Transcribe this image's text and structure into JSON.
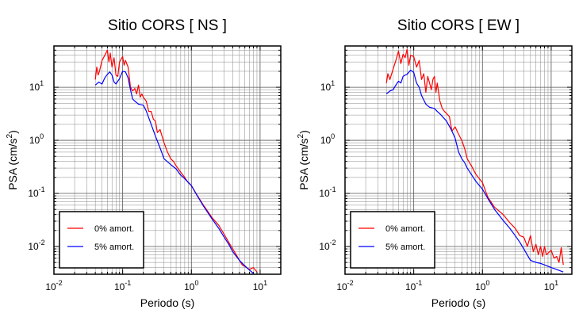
{
  "chart_data": [
    {
      "type": "line",
      "title": "Sitio CORS [ NS ]",
      "xlabel": "Periodo (s)",
      "ylabel_main": "PSA (cm/s",
      "ylabel_sup": "2",
      "ylabel_close": ")",
      "x_scale": "log",
      "y_scale": "log",
      "xlim": [
        0.01,
        20
      ],
      "ylim": [
        0.003,
        60
      ],
      "grid": true,
      "legend_position": "bottom-left",
      "x_ticks": [
        {
          "value": 0.01,
          "base": "10",
          "exp": "-2"
        },
        {
          "value": 0.1,
          "base": "10",
          "exp": "-1"
        },
        {
          "value": 1,
          "base": "10",
          "exp": "0"
        },
        {
          "value": 10,
          "base": "10",
          "exp": "1"
        }
      ],
      "y_ticks": [
        {
          "value": 0.01,
          "base": "10",
          "exp": "-2"
        },
        {
          "value": 0.1,
          "base": "10",
          "exp": "-1"
        },
        {
          "value": 1,
          "base": "10",
          "exp": "0"
        },
        {
          "value": 10,
          "base": "10",
          "exp": "1"
        }
      ],
      "series": [
        {
          "name": "0% amort.",
          "color": "#ff0000",
          "x": [
            0.04,
            0.042,
            0.044,
            0.046,
            0.05,
            0.055,
            0.06,
            0.063,
            0.066,
            0.07,
            0.075,
            0.08,
            0.085,
            0.09,
            0.1,
            0.105,
            0.11,
            0.12,
            0.13,
            0.14,
            0.15,
            0.16,
            0.17,
            0.18,
            0.19,
            0.2,
            0.22,
            0.24,
            0.26,
            0.28,
            0.3,
            0.32,
            0.35,
            0.4,
            0.45,
            0.5,
            0.55,
            0.6,
            0.7,
            0.8,
            0.9,
            1.0,
            1.2,
            1.5,
            2.0,
            2.5,
            3.0,
            3.5,
            4.0,
            4.5,
            5.0,
            5.5,
            6.0,
            7.0,
            8.0,
            9.0
          ],
          "values": [
            14,
            24,
            17,
            20,
            32,
            40,
            50,
            30,
            44,
            24,
            36,
            17,
            16,
            30,
            38,
            26,
            32,
            24,
            10,
            8.5,
            9.5,
            7.5,
            11,
            6.5,
            7.5,
            6.5,
            5.5,
            3.5,
            3.5,
            2.5,
            2.3,
            1.4,
            1.6,
            0.9,
            0.6,
            0.45,
            0.4,
            0.33,
            0.25,
            0.2,
            0.16,
            0.14,
            0.095,
            0.06,
            0.035,
            0.025,
            0.017,
            0.012,
            0.009,
            0.007,
            0.0055,
            0.0045,
            0.0042,
            0.0037,
            0.004,
            0.0033
          ]
        },
        {
          "name": "5% amort.",
          "color": "#0000ff",
          "x": [
            0.04,
            0.045,
            0.05,
            0.055,
            0.06,
            0.065,
            0.07,
            0.075,
            0.08,
            0.085,
            0.09,
            0.1,
            0.11,
            0.12,
            0.13,
            0.14,
            0.15,
            0.17,
            0.2,
            0.22,
            0.25,
            0.3,
            0.35,
            0.4,
            0.5,
            0.6,
            0.7,
            0.8,
            1.0,
            1.2,
            1.5,
            2.0,
            2.5,
            3.0,
            3.5,
            4.0,
            5.0,
            6.0,
            7.0,
            8.0
          ],
          "values": [
            11,
            12.5,
            11.5,
            15,
            17.5,
            19.5,
            17,
            12.5,
            11.5,
            13,
            14.5,
            20,
            19.5,
            15,
            9,
            6,
            5.5,
            4.8,
            4.6,
            3.6,
            2.3,
            1.2,
            0.72,
            0.45,
            0.35,
            0.29,
            0.22,
            0.19,
            0.14,
            0.093,
            0.058,
            0.033,
            0.022,
            0.015,
            0.011,
            0.008,
            0.0055,
            0.0043,
            0.0036,
            0.0031
          ]
        }
      ]
    },
    {
      "type": "line",
      "title": "Sitio CORS [ EW ]",
      "xlabel": "Periodo (s)",
      "ylabel_main": "PSA (cm/s",
      "ylabel_sup": "2",
      "ylabel_close": ")",
      "x_scale": "log",
      "y_scale": "log",
      "xlim": [
        0.01,
        20
      ],
      "ylim": [
        0.003,
        60
      ],
      "grid": true,
      "legend_position": "bottom-left",
      "x_ticks": [
        {
          "value": 0.01,
          "base": "10",
          "exp": "-2"
        },
        {
          "value": 0.1,
          "base": "10",
          "exp": "-1"
        },
        {
          "value": 1,
          "base": "10",
          "exp": "0"
        },
        {
          "value": 10,
          "base": "10",
          "exp": "1"
        }
      ],
      "y_ticks": [
        {
          "value": 0.01,
          "base": "10",
          "exp": "-2"
        },
        {
          "value": 0.1,
          "base": "10",
          "exp": "-1"
        },
        {
          "value": 1,
          "base": "10",
          "exp": "0"
        },
        {
          "value": 10,
          "base": "10",
          "exp": "1"
        }
      ],
      "series": [
        {
          "name": "0% amort.",
          "color": "#ff0000",
          "x": [
            0.04,
            0.042,
            0.045,
            0.05,
            0.055,
            0.06,
            0.065,
            0.07,
            0.075,
            0.08,
            0.085,
            0.09,
            0.1,
            0.11,
            0.12,
            0.13,
            0.14,
            0.15,
            0.16,
            0.17,
            0.18,
            0.19,
            0.2,
            0.21,
            0.22,
            0.24,
            0.26,
            0.28,
            0.3,
            0.33,
            0.36,
            0.4,
            0.45,
            0.5,
            0.55,
            0.6,
            0.7,
            0.8,
            0.9,
            1.0,
            1.2,
            1.5,
            2.0,
            2.5,
            3.0,
            3.5,
            4.0,
            4.5,
            5.0,
            5.5,
            6.0,
            6.5,
            7.0,
            7.5,
            8.0,
            8.5,
            9.0,
            10.0,
            11.0,
            12.0,
            13.0,
            14.0,
            15.0
          ],
          "values": [
            12,
            18,
            14,
            22,
            32,
            48,
            28,
            42,
            36,
            52,
            26,
            40,
            38,
            24,
            32,
            14,
            18,
            8,
            16,
            12,
            9,
            14,
            16,
            8,
            12,
            5.5,
            4,
            3.5,
            3.2,
            2.8,
            1.5,
            1.8,
            1.3,
            1.0,
            0.7,
            0.45,
            0.32,
            0.23,
            0.19,
            0.16,
            0.085,
            0.055,
            0.04,
            0.028,
            0.022,
            0.016,
            0.015,
            0.01,
            0.016,
            0.008,
            0.011,
            0.007,
            0.01,
            0.0065,
            0.01,
            0.007,
            0.0075,
            0.0085,
            0.006,
            0.0065,
            0.005,
            0.0095,
            0.0045
          ]
        },
        {
          "name": "5% amort.",
          "color": "#0000ff",
          "x": [
            0.04,
            0.045,
            0.05,
            0.055,
            0.06,
            0.065,
            0.07,
            0.075,
            0.08,
            0.09,
            0.1,
            0.11,
            0.12,
            0.13,
            0.15,
            0.17,
            0.2,
            0.22,
            0.25,
            0.3,
            0.35,
            0.4,
            0.45,
            0.5,
            0.55,
            0.6,
            0.7,
            0.8,
            1.0,
            1.2,
            1.5,
            2.0,
            2.5,
            3.0,
            3.5,
            4.0,
            5.0,
            6.0,
            7.0,
            8.0,
            10.0,
            12.0,
            15.0
          ],
          "values": [
            7.5,
            8.5,
            9,
            11,
            13,
            12,
            16,
            17,
            17.5,
            21,
            19,
            12,
            10,
            7,
            4.8,
            4.2,
            4.0,
            3.5,
            3.0,
            2.3,
            1.6,
            1.1,
            0.6,
            0.45,
            0.38,
            0.3,
            0.22,
            0.17,
            0.12,
            0.08,
            0.05,
            0.031,
            0.022,
            0.016,
            0.012,
            0.009,
            0.0055,
            0.005,
            0.0048,
            0.0045,
            0.004,
            0.0037,
            0.0033
          ]
        }
      ]
    }
  ]
}
